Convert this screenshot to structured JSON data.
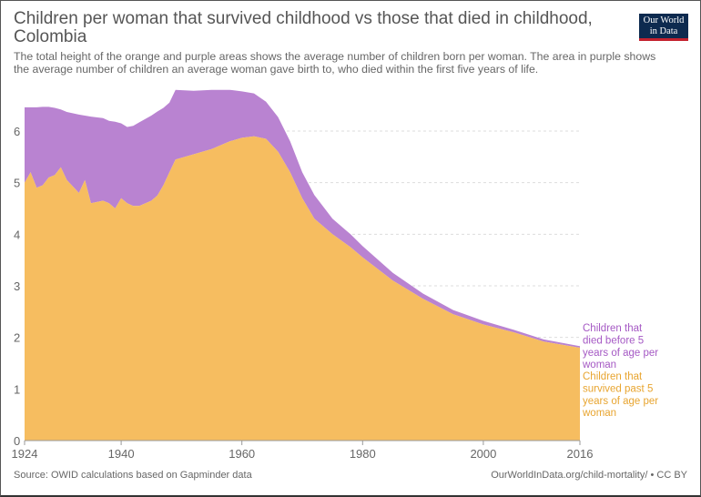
{
  "header": {
    "title": "Children per woman that survived childhood vs those that died in childhood, Colombia",
    "subtitle": "The total height of the orange and purple areas shows the average number of children born per woman. The area in purple shows the average number of children an average woman gave birth to, who died within the first five years of life.",
    "logo_line1": "Our World",
    "logo_line2": "in Data"
  },
  "footer": {
    "source": "Source: OWID calculations based on Gapminder data",
    "credit": "OurWorldInData.org/child-mortality/ • CC BY"
  },
  "colors": {
    "survived": "#f6bd60",
    "died": "#b983d1",
    "died_text": "#a559c4",
    "survived_text": "#e8a530",
    "grid": "#dddddd"
  },
  "chart_data": {
    "type": "area",
    "stacked": true,
    "title": "Children per woman that survived childhood vs those that died in childhood, Colombia",
    "xlabel": "",
    "ylabel": "",
    "xlim": [
      1924,
      2016
    ],
    "ylim": [
      0,
      6
    ],
    "x_ticks": [
      1924,
      1940,
      1960,
      1980,
      2000,
      2016
    ],
    "y_ticks": [
      0,
      1,
      2,
      3,
      4,
      5,
      6
    ],
    "legend_position": "right",
    "series": [
      {
        "name": "Children that survived past 5 years of age per woman",
        "key": "survived",
        "points": [
          [
            1924,
            5.0
          ],
          [
            1925,
            5.2
          ],
          [
            1926,
            4.9
          ],
          [
            1927,
            4.95
          ],
          [
            1928,
            5.1
          ],
          [
            1929,
            5.15
          ],
          [
            1930,
            5.3
          ],
          [
            1931,
            5.05
          ],
          [
            1933,
            4.8
          ],
          [
            1934,
            5.05
          ],
          [
            1935,
            4.6
          ],
          [
            1937,
            4.65
          ],
          [
            1938,
            4.6
          ],
          [
            1939,
            4.5
          ],
          [
            1940,
            4.7
          ],
          [
            1941,
            4.6
          ],
          [
            1942,
            4.55
          ],
          [
            1943,
            4.55
          ],
          [
            1945,
            4.65
          ],
          [
            1946,
            4.75
          ],
          [
            1947,
            4.95
          ],
          [
            1948,
            5.2
          ],
          [
            1949,
            5.45
          ],
          [
            1952,
            5.55
          ],
          [
            1955,
            5.65
          ],
          [
            1958,
            5.8
          ],
          [
            1960,
            5.87
          ],
          [
            1962,
            5.9
          ],
          [
            1964,
            5.85
          ],
          [
            1966,
            5.6
          ],
          [
            1968,
            5.2
          ],
          [
            1970,
            4.7
          ],
          [
            1972,
            4.3
          ],
          [
            1975,
            4.0
          ],
          [
            1978,
            3.75
          ],
          [
            1980,
            3.55
          ],
          [
            1985,
            3.1
          ],
          [
            1990,
            2.75
          ],
          [
            1995,
            2.45
          ],
          [
            2000,
            2.25
          ],
          [
            2005,
            2.1
          ],
          [
            2010,
            1.92
          ],
          [
            2016,
            1.8
          ]
        ]
      },
      {
        "name": "Children that died before 5 years of age per woman",
        "key": "died",
        "points": [
          [
            1924,
            1.46
          ],
          [
            1925,
            1.26
          ],
          [
            1926,
            1.56
          ],
          [
            1927,
            1.52
          ],
          [
            1928,
            1.37
          ],
          [
            1929,
            1.3
          ],
          [
            1930,
            1.12
          ],
          [
            1931,
            1.32
          ],
          [
            1933,
            1.52
          ],
          [
            1934,
            1.25
          ],
          [
            1935,
            1.68
          ],
          [
            1937,
            1.6
          ],
          [
            1938,
            1.6
          ],
          [
            1939,
            1.68
          ],
          [
            1940,
            1.45
          ],
          [
            1941,
            1.48
          ],
          [
            1942,
            1.55
          ],
          [
            1943,
            1.62
          ],
          [
            1945,
            1.65
          ],
          [
            1946,
            1.63
          ],
          [
            1947,
            1.5
          ],
          [
            1948,
            1.35
          ],
          [
            1949,
            1.35
          ],
          [
            1952,
            1.23
          ],
          [
            1955,
            1.15
          ],
          [
            1958,
            1.0
          ],
          [
            1960,
            0.9
          ],
          [
            1962,
            0.83
          ],
          [
            1964,
            0.72
          ],
          [
            1966,
            0.67
          ],
          [
            1968,
            0.6
          ],
          [
            1970,
            0.5
          ],
          [
            1972,
            0.46
          ],
          [
            1975,
            0.3
          ],
          [
            1978,
            0.25
          ],
          [
            1980,
            0.22
          ],
          [
            1985,
            0.15
          ],
          [
            1990,
            0.1
          ],
          [
            1995,
            0.08
          ],
          [
            2000,
            0.07
          ],
          [
            2005,
            0.05
          ],
          [
            2010,
            0.04
          ],
          [
            2016,
            0.03
          ]
        ]
      }
    ],
    "legend": {
      "died_lines": [
        "Children that",
        "died before 5",
        "years of age per",
        "woman"
      ],
      "survived_lines": [
        "Children that",
        "survived past 5",
        "years of age per",
        "woman"
      ]
    }
  }
}
